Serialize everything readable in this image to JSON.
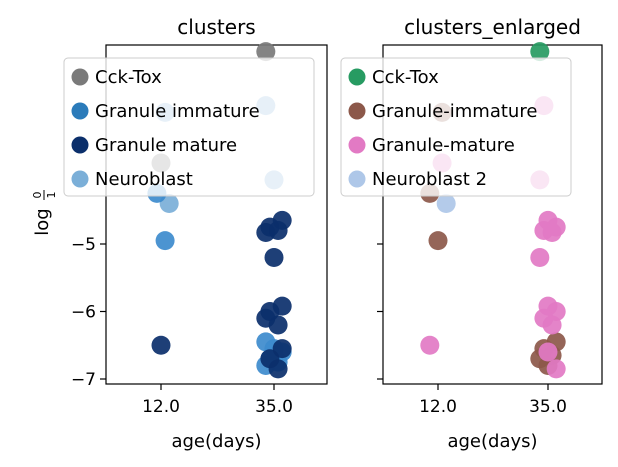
{
  "chart_data": [
    {
      "type": "scatter",
      "title": "clusters",
      "xlabel": "age(days)",
      "ylabel": "log",
      "ylabel_frac_num": "0",
      "ylabel_frac_den": "1",
      "x_categories": [
        "12.0",
        "35.0"
      ],
      "yticks": [
        "−5",
        "−6",
        "−7"
      ],
      "ytick_values": [
        -5,
        -6,
        -7
      ],
      "ylim": [
        -7.1,
        -2.0
      ],
      "grid": false,
      "legend_position": "top",
      "legend": [
        {
          "label": "Cck-Tox",
          "color": "#7a7a7a"
        },
        {
          "label": "Granule immature",
          "color": "#2b7bba"
        },
        {
          "label": "Granule mature",
          "color": "#0b2f6b"
        },
        {
          "label": "Neuroblast",
          "color": "#7bafd8"
        }
      ],
      "series": [
        {
          "name": "Cck-Tox",
          "color": "#7a7a7a",
          "points": [
            {
              "x": "35.0",
              "y": -2.15
            },
            {
              "x": "12.0",
              "y": -3.8
            }
          ]
        },
        {
          "name": "Neuroblast",
          "color": "#7bafd8",
          "points": [
            {
              "x": "12.0",
              "y": -3.05
            },
            {
              "x": "35.0",
              "y": -2.95
            },
            {
              "x": "35.0",
              "y": -4.05
            },
            {
              "x": "12.0",
              "y": -4.4
            }
          ]
        },
        {
          "name": "Granule immature",
          "color": "#3d8bcd",
          "points": [
            {
              "x": "12.0",
              "y": -4.25
            },
            {
              "x": "12.0",
              "y": -4.95
            },
            {
              "x": "35.0",
              "y": -6.45
            },
            {
              "x": "35.0",
              "y": -6.55
            },
            {
              "x": "35.0",
              "y": -6.6
            },
            {
              "x": "35.0",
              "y": -6.7
            },
            {
              "x": "35.0",
              "y": -6.75
            },
            {
              "x": "35.0",
              "y": -6.8
            }
          ]
        },
        {
          "name": "Granule mature",
          "color": "#0b2f6b",
          "points": [
            {
              "x": "35.0",
              "y": -4.65
            },
            {
              "x": "35.0",
              "y": -4.75
            },
            {
              "x": "35.0",
              "y": -4.8
            },
            {
              "x": "35.0",
              "y": -4.83
            },
            {
              "x": "35.0",
              "y": -5.2
            },
            {
              "x": "35.0",
              "y": -5.92
            },
            {
              "x": "35.0",
              "y": -6.0
            },
            {
              "x": "35.0",
              "y": -6.2
            },
            {
              "x": "35.0",
              "y": -6.1
            },
            {
              "x": "12.0",
              "y": -6.5
            },
            {
              "x": "35.0",
              "y": -6.55
            },
            {
              "x": "35.0",
              "y": -6.7
            },
            {
              "x": "35.0",
              "y": -6.85
            }
          ]
        }
      ]
    },
    {
      "type": "scatter",
      "title": "clusters_enlarged",
      "xlabel": "age(days)",
      "x_categories": [
        "12.0",
        "35.0"
      ],
      "ylim": [
        -7.1,
        -2.0
      ],
      "grid": false,
      "legend_position": "top",
      "legend": [
        {
          "label": "Cck-Tox",
          "color": "#279b62"
        },
        {
          "label": "Granule-immature",
          "color": "#8c584a"
        },
        {
          "label": "Granule-mature",
          "color": "#e27ac4"
        },
        {
          "label": "Neuroblast 2",
          "color": "#aec7e8"
        }
      ],
      "series": [
        {
          "name": "Cck-Tox",
          "color": "#279b62",
          "points": [
            {
              "x": "35.0",
              "y": -2.15
            }
          ]
        },
        {
          "name": "Granule-immature",
          "color": "#8c584a",
          "points": [
            {
              "x": "12.0",
              "y": -3.05
            },
            {
              "x": "12.0",
              "y": -4.25
            },
            {
              "x": "12.0",
              "y": -4.95
            },
            {
              "x": "35.0",
              "y": -6.45
            },
            {
              "x": "35.0",
              "y": -6.55
            },
            {
              "x": "35.0",
              "y": -6.65
            },
            {
              "x": "35.0",
              "y": -6.7
            },
            {
              "x": "35.0",
              "y": -6.8
            }
          ]
        },
        {
          "name": "Granule-mature",
          "color": "#e27ac4",
          "points": [
            {
              "x": "35.0",
              "y": -2.95
            },
            {
              "x": "12.0",
              "y": -3.8
            },
            {
              "x": "35.0",
              "y": -4.05
            },
            {
              "x": "35.0",
              "y": -4.65
            },
            {
              "x": "35.0",
              "y": -4.75
            },
            {
              "x": "35.0",
              "y": -4.8
            },
            {
              "x": "35.0",
              "y": -4.83
            },
            {
              "x": "35.0",
              "y": -5.2
            },
            {
              "x": "35.0",
              "y": -5.92
            },
            {
              "x": "35.0",
              "y": -6.0
            },
            {
              "x": "35.0",
              "y": -6.1
            },
            {
              "x": "35.0",
              "y": -6.2
            },
            {
              "x": "12.0",
              "y": -6.5
            },
            {
              "x": "35.0",
              "y": -6.6
            },
            {
              "x": "35.0",
              "y": -6.85
            }
          ]
        },
        {
          "name": "Neuroblast 2",
          "color": "#aec7e8",
          "points": [
            {
              "x": "12.0",
              "y": -4.4
            }
          ]
        }
      ]
    }
  ]
}
